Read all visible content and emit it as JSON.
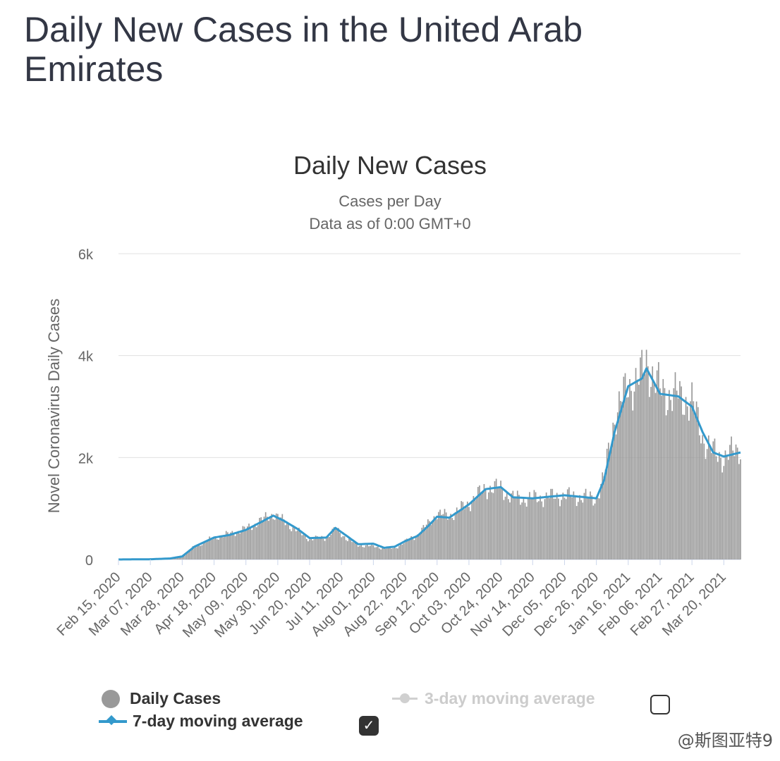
{
  "page": {
    "title": "Daily New Cases in the United Arab Emirates",
    "watermark": "@斯图亚特9"
  },
  "chart_data": {
    "type": "bar",
    "title": "Daily New Cases",
    "subtitle": "Cases per Day",
    "data_note": "Data as of 0:00 GMT+0",
    "ylabel": "Novel Coronavirus Daily Cases",
    "xlabel": "",
    "ylim": [
      0,
      6000
    ],
    "yticks": [
      0,
      2000,
      4000,
      6000
    ],
    "ytick_labels": [
      "0",
      "2k",
      "4k",
      "6k"
    ],
    "x_start": "Feb 15, 2020",
    "x_end": "Mar 31, 2021",
    "xtick_labels": [
      "Feb 15, 2020",
      "Mar 07, 2020",
      "Mar 28, 2020",
      "Apr 18, 2020",
      "May 09, 2020",
      "May 30, 2020",
      "Jun 20, 2020",
      "Jul 11, 2020",
      "Aug 01, 2020",
      "Aug 22, 2020",
      "Sep 12, 2020",
      "Oct 03, 2020",
      "Oct 24, 2020",
      "Nov 14, 2020",
      "Dec 05, 2020",
      "Dec 26, 2020",
      "Jan 16, 2021",
      "Feb 06, 2021",
      "Feb 27, 2021",
      "Mar 20, 2021"
    ],
    "grid": true,
    "legend_placement": "bottom",
    "colors": {
      "bars": "#999999",
      "moving_average": "#3399cc",
      "gridline": "#e0e0e0",
      "baseline": "#ccd6eb",
      "disabled": "#cccccc"
    },
    "series": [
      {
        "name": "Daily Cases",
        "kind": "bar",
        "key_points": [
          [
            "2020-02-15",
            0
          ],
          [
            "2020-03-07",
            5
          ],
          [
            "2020-03-20",
            20
          ],
          [
            "2020-03-28",
            60
          ],
          [
            "2020-04-05",
            250
          ],
          [
            "2020-04-18",
            430
          ],
          [
            "2020-04-28",
            500
          ],
          [
            "2020-05-09",
            600
          ],
          [
            "2020-05-20",
            780
          ],
          [
            "2020-05-27",
            900
          ],
          [
            "2020-06-03",
            750
          ],
          [
            "2020-06-12",
            560
          ],
          [
            "2020-06-20",
            400
          ],
          [
            "2020-07-01",
            430
          ],
          [
            "2020-07-07",
            600
          ],
          [
            "2020-07-15",
            400
          ],
          [
            "2020-07-22",
            280
          ],
          [
            "2020-08-01",
            260
          ],
          [
            "2020-08-08",
            220
          ],
          [
            "2020-08-15",
            220
          ],
          [
            "2020-08-22",
            350
          ],
          [
            "2020-08-30",
            480
          ],
          [
            "2020-09-06",
            700
          ],
          [
            "2020-09-12",
            900
          ],
          [
            "2020-09-20",
            850
          ],
          [
            "2020-10-03",
            1100
          ],
          [
            "2020-10-14",
            1400
          ],
          [
            "2020-10-24",
            1400
          ],
          [
            "2020-11-01",
            1200
          ],
          [
            "2020-11-14",
            1200
          ],
          [
            "2020-12-05",
            1250
          ],
          [
            "2020-12-26",
            1200
          ],
          [
            "2020-12-31",
            1600
          ],
          [
            "2021-01-07",
            2800
          ],
          [
            "2021-01-16",
            3400
          ],
          [
            "2021-01-25",
            3600
          ],
          [
            "2021-01-28",
            3900
          ],
          [
            "2021-02-06",
            3300
          ],
          [
            "2021-02-18",
            3200
          ],
          [
            "2021-02-27",
            3100
          ],
          [
            "2021-03-06",
            2400
          ],
          [
            "2021-03-13",
            2100
          ],
          [
            "2021-03-20",
            2000
          ],
          [
            "2021-03-31",
            2200
          ]
        ]
      },
      {
        "name": "7-day moving average",
        "kind": "line",
        "points": [
          [
            "2020-02-15",
            0
          ],
          [
            "2020-03-07",
            5
          ],
          [
            "2020-03-20",
            20
          ],
          [
            "2020-03-28",
            60
          ],
          [
            "2020-04-05",
            250
          ],
          [
            "2020-04-18",
            430
          ],
          [
            "2020-04-28",
            480
          ],
          [
            "2020-05-09",
            580
          ],
          [
            "2020-05-20",
            750
          ],
          [
            "2020-05-27",
            860
          ],
          [
            "2020-06-03",
            760
          ],
          [
            "2020-06-12",
            600
          ],
          [
            "2020-06-20",
            420
          ],
          [
            "2020-07-01",
            430
          ],
          [
            "2020-07-07",
            620
          ],
          [
            "2020-07-15",
            450
          ],
          [
            "2020-07-22",
            300
          ],
          [
            "2020-08-01",
            310
          ],
          [
            "2020-08-08",
            230
          ],
          [
            "2020-08-15",
            250
          ],
          [
            "2020-08-22",
            360
          ],
          [
            "2020-08-30",
            460
          ],
          [
            "2020-09-06",
            650
          ],
          [
            "2020-09-12",
            840
          ],
          [
            "2020-09-20",
            820
          ],
          [
            "2020-10-03",
            1080
          ],
          [
            "2020-10-14",
            1380
          ],
          [
            "2020-10-24",
            1420
          ],
          [
            "2020-11-01",
            1220
          ],
          [
            "2020-11-14",
            1200
          ],
          [
            "2020-12-05",
            1260
          ],
          [
            "2020-12-26",
            1200
          ],
          [
            "2020-12-31",
            1550
          ],
          [
            "2021-01-07",
            2500
          ],
          [
            "2021-01-16",
            3400
          ],
          [
            "2021-01-25",
            3550
          ],
          [
            "2021-01-28",
            3750
          ],
          [
            "2021-02-06",
            3250
          ],
          [
            "2021-02-18",
            3200
          ],
          [
            "2021-02-27",
            3000
          ],
          [
            "2021-03-06",
            2500
          ],
          [
            "2021-03-13",
            2100
          ],
          [
            "2021-03-20",
            2020
          ],
          [
            "2021-03-31",
            2100
          ]
        ]
      },
      {
        "name": "3-day moving average",
        "kind": "line",
        "enabled": false
      }
    ],
    "legend": {
      "daily_cases": "Daily Cases",
      "ma7": "7-day moving average",
      "ma3": "3-day moving average",
      "ma7_checked": true,
      "ma3_checked": false
    }
  }
}
